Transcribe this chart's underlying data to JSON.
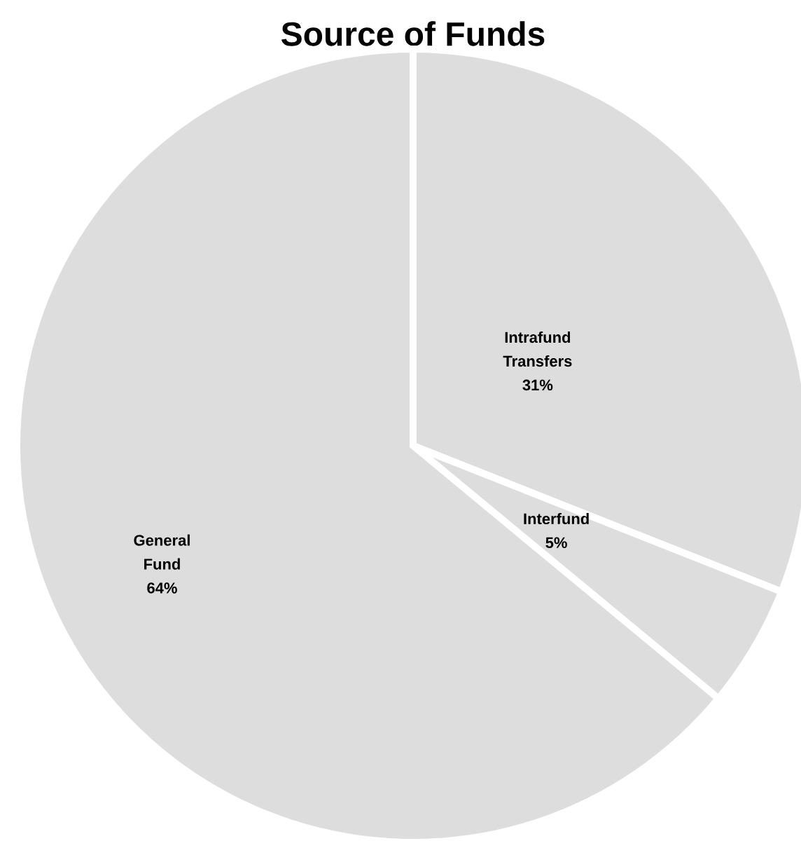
{
  "chart_data": {
    "type": "pie",
    "title": "Source of Funds",
    "categories": [
      "Intrafund Transfers",
      "Interfund",
      "General Fund"
    ],
    "values": [
      31,
      5,
      64
    ],
    "value_labels": [
      "31%",
      "5%",
      "64%"
    ],
    "colors": [
      "#dddddd",
      "#dddddd",
      "#dddddd"
    ]
  }
}
